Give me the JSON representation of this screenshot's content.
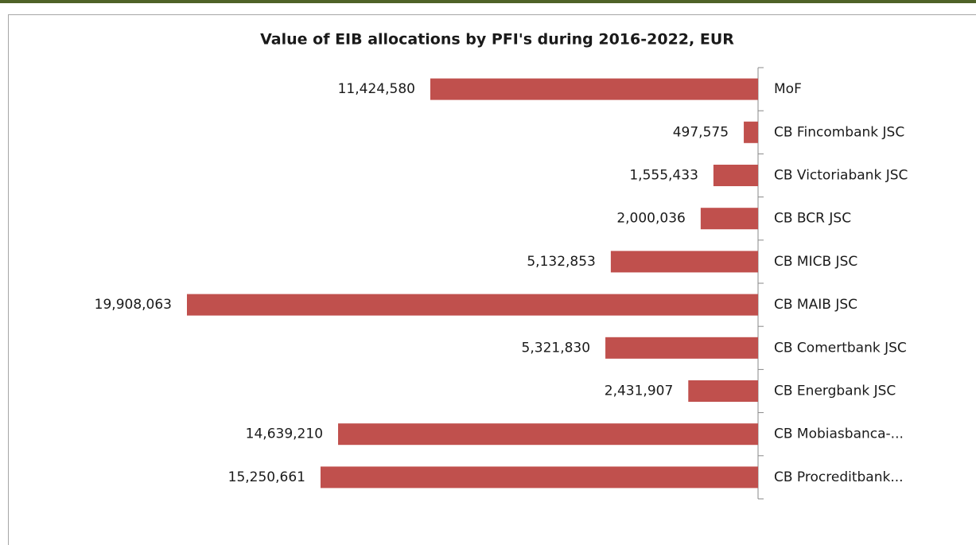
{
  "chart_data": {
    "type": "barh",
    "title": "Value of EIB allocations by PFI's during 2016-2022, EUR",
    "categories": [
      "MoF",
      "CB Fincombank JSC",
      "CB Victoriabank JSC",
      "CB BCR JSC",
      "CB MICB JSC",
      "CB MAIB JSC",
      "CB Comertbank JSC",
      "CB Energbank JSC",
      "CB Mobiasbanca-...",
      "CB Procreditbank..."
    ],
    "values": [
      11424580,
      497575,
      1555433,
      2000036,
      5132853,
      19908063,
      5321830,
      2431907,
      14639210,
      15250661
    ],
    "value_labels": [
      "11,424,580",
      "497,575",
      "1,555,433",
      "2,000,036",
      "5,132,853",
      "19,908,063",
      "5,321,830",
      "2,431,907",
      "14,639,210",
      "15,250,661"
    ],
    "color": "#c0504d"
  }
}
